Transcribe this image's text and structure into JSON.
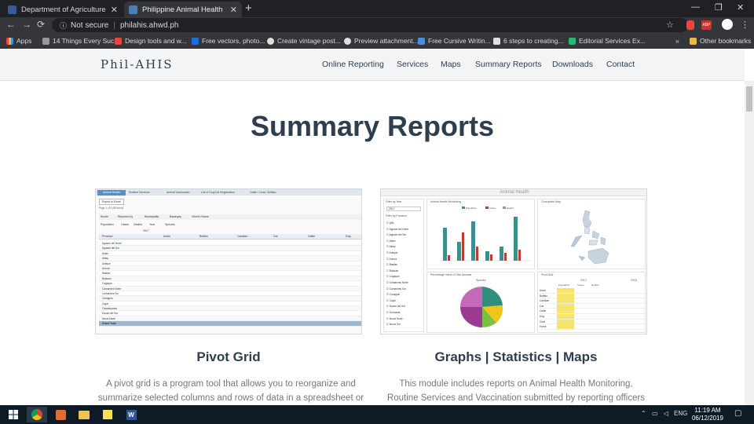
{
  "browser": {
    "tabs": [
      {
        "title": "Department of Agriculture Regio",
        "active": false,
        "favicon_color": "#3b5998"
      },
      {
        "title": "Philippine Animal Health Inform",
        "active": true,
        "favicon_color": "#4a7fb5"
      }
    ],
    "new_tab": "+",
    "security": "Not secure",
    "url": "philahis.ahwd.ph",
    "bookmarks": [
      {
        "label": "Apps",
        "color": "#e8453c"
      },
      {
        "label": "14 Things Every Suc...",
        "color": "#999999"
      },
      {
        "label": "Design tools and w...",
        "color": "#e8453c"
      },
      {
        "label": "Free vectors, photo...",
        "color": "#1e6fd9"
      },
      {
        "label": "Create vintage post...",
        "color": "#e0e0e0"
      },
      {
        "label": "Preview attachment...",
        "color": "#e0e0e0"
      },
      {
        "label": "Free Cursive Writin...",
        "color": "#4a90d9"
      },
      {
        "label": "6 steps to creating...",
        "color": "#e0e0e0"
      },
      {
        "label": "Editorial Services Ex...",
        "color": "#2bb673"
      }
    ],
    "bookmarks_overflow": "»",
    "other_bookmarks": "Other bookmarks"
  },
  "site": {
    "brand": "Phil-AHIS",
    "nav": [
      "Online Reporting",
      "Services",
      "Maps",
      "Summary Reports",
      "Downloads",
      "Contact"
    ],
    "page_title": "Summary Reports",
    "cards": [
      {
        "title": "Pivot Grid",
        "description_lines": [
          "A pivot grid is a program tool that allows you to reorganize and",
          "summarize selected columns and rows of data in a spreadsheet or"
        ]
      },
      {
        "title": "Graphs | Statistics | Maps",
        "description_lines": [
          "This module includes reports on Animal Health Monitoring,",
          "Routine Services and Vaccination submitted by reporting officers"
        ]
      }
    ],
    "thumb_pivot": {
      "tabs": [
        "Animal Health",
        "Routine Services",
        "Animal Vaccination",
        "List of Dog/Cat Registration",
        "Cattle / Goat / Buffalo"
      ],
      "export": "Export to Excel",
      "filters": [
        "Month",
        "Reported by",
        "Municipality",
        "Barangay",
        "Client's Name"
      ],
      "measures": [
        "Population",
        "Cases",
        "Deaths",
        "Year",
        "Species"
      ],
      "year": "2017",
      "row_header": "Province",
      "species": [
        "Avian",
        "Buffalo",
        "Carabao",
        "Cat",
        "Cattle",
        "Dog"
      ],
      "provinces": [
        "Agusan del Norte",
        "Agusan del Sur",
        "Aklan",
        "Albay",
        "Antique",
        "Aurora",
        "Basilan",
        "Bulacan",
        "Cagayan",
        "Camarines Norte",
        "Camarines Sur",
        "Camiguin",
        "Capiz",
        "Catanduanes",
        "Davao del Sur",
        "Ilocos Norte",
        "Grand Total"
      ],
      "pager": "Page 1 of 5 (89 items)"
    },
    "thumb_dashboard": {
      "title": "Animal Health",
      "filter_year_label": "Filter by Year",
      "filter_year_value": "2017",
      "filter_province_label": "Filter by Province",
      "provinces": [
        "(All)",
        "Agusan del Norte",
        "Agusan del Sur",
        "Aklan",
        "Albay",
        "Antique",
        "Aurora",
        "Basilan",
        "Bulacan",
        "Cagayan",
        "Camarines Norte",
        "Camarines Sur",
        "Camiguin",
        "Capiz",
        "Davao del Sur",
        "Guimaras",
        "Ilocos Norte",
        "Ilocos Sur"
      ],
      "bar_panel_title": "Animal Health Monitoring",
      "bar_legend": [
        "Population",
        "Cases",
        "Deaths"
      ],
      "map_panel_title": "Choropleth Map",
      "pie_panel_title": "Percentage Value of Sick Animals",
      "pie_label": "Species",
      "grid_panel_title": "Pivot Grid",
      "grid_years": [
        "2017",
        "2018"
      ],
      "grid_cols": [
        "Population",
        "Cases",
        "Deaths"
      ],
      "grid_rows": [
        "Avian",
        "Buffalo",
        "Carabao",
        "Cat",
        "Cattle",
        "Dog",
        "Goat",
        "Horse"
      ]
    }
  },
  "taskbar": {
    "lang": "ENG",
    "time": "11:19 AM",
    "date": "06/12/2019"
  }
}
